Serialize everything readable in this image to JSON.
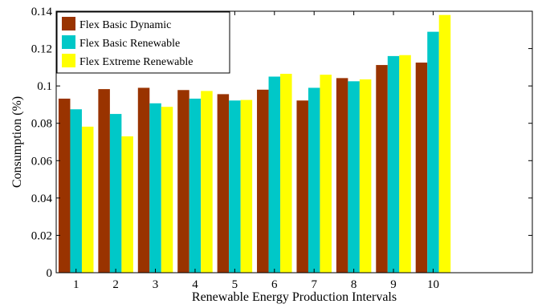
{
  "chart_data": {
    "type": "bar",
    "title": "",
    "xlabel": "Renewable Energy Production Intervals",
    "ylabel": "Consumption (%)",
    "categories": [
      "1",
      "2",
      "3",
      "4",
      "5",
      "6",
      "7",
      "8",
      "9",
      "10"
    ],
    "ylim": [
      0,
      0.14
    ],
    "yticks": [
      "0",
      "0.02",
      "0.04",
      "0.06",
      "0.08",
      "0.1",
      "0.12",
      "0.14"
    ],
    "yticks_values": [
      0,
      0.02,
      0.04,
      0.06,
      0.08,
      0.1,
      0.12,
      0.14
    ],
    "legend_position": "top-left",
    "grid": false,
    "series": [
      {
        "name": "Flex Basic Dynamic",
        "color": "#993300",
        "values": [
          0.0932,
          0.0983,
          0.099,
          0.0978,
          0.0956,
          0.098,
          0.0922,
          0.1042,
          0.1112,
          0.1125
        ]
      },
      {
        "name": "Flex Basic Renewable",
        "color": "#00C8C8",
        "values": [
          0.0875,
          0.085,
          0.0907,
          0.0932,
          0.0922,
          0.105,
          0.099,
          0.1025,
          0.116,
          0.129
        ]
      },
      {
        "name": "Flex Extreme Renewable",
        "color": "#FFFF00",
        "values": [
          0.0782,
          0.073,
          0.0888,
          0.0973,
          0.0925,
          0.1065,
          0.106,
          0.1035,
          0.1165,
          0.138
        ]
      }
    ]
  }
}
